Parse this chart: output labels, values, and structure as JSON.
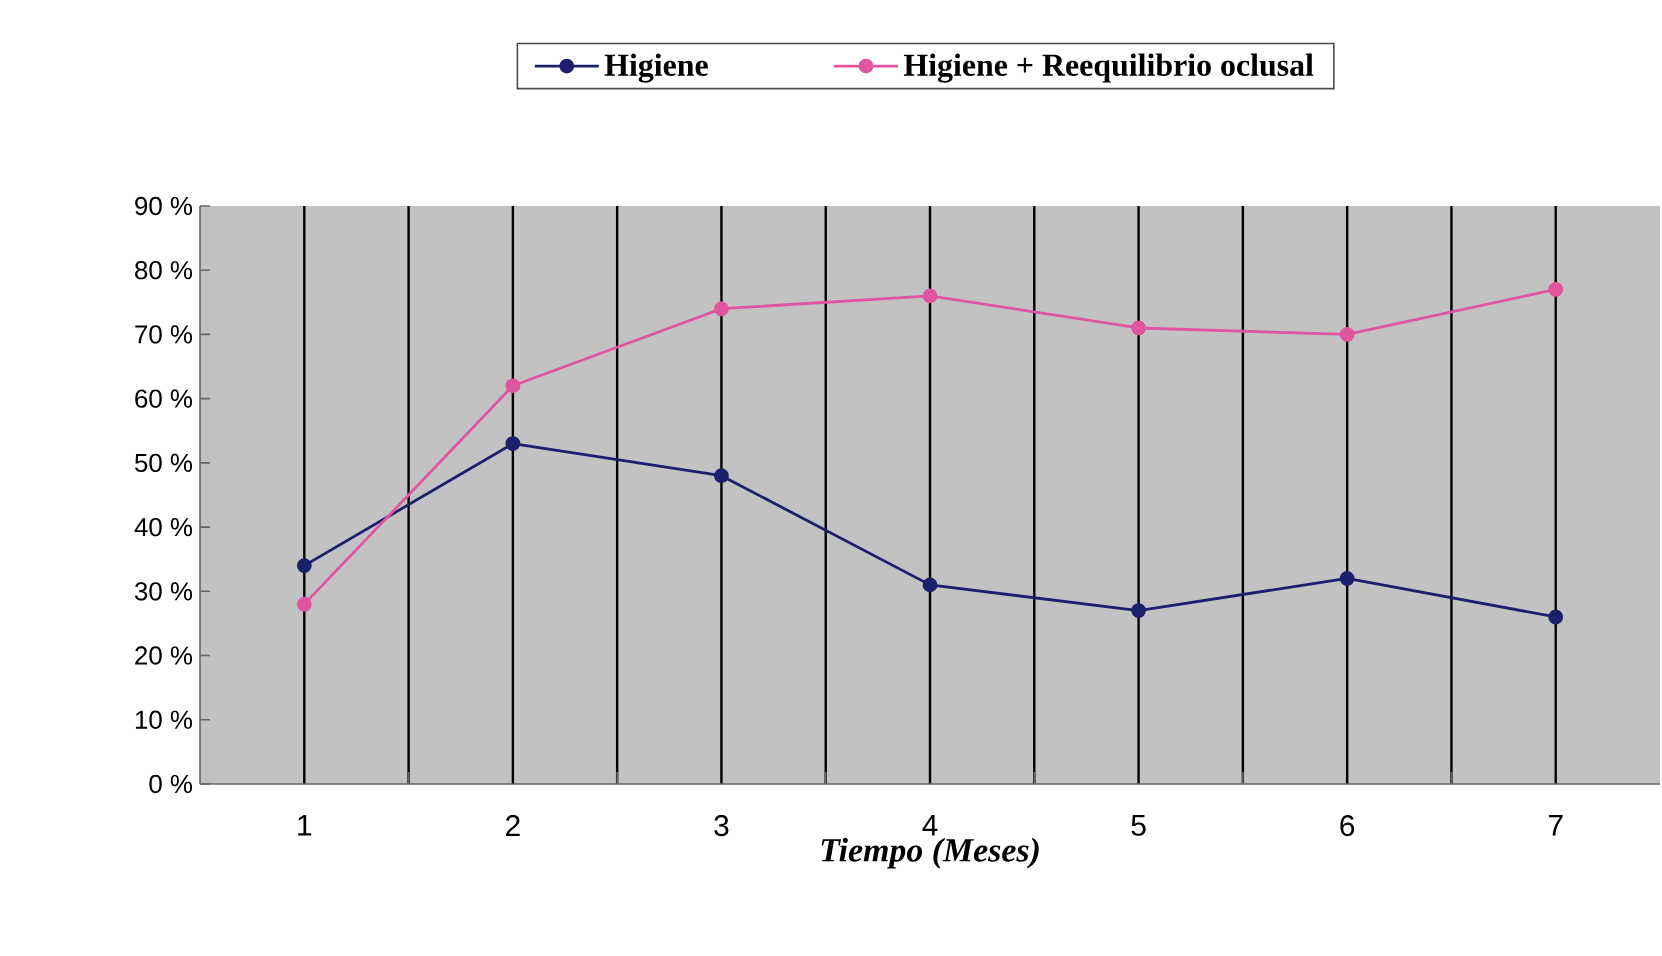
{
  "chart_data": {
    "type": "line",
    "xlabel": "Tiempo (Meses)",
    "categories": [
      "1",
      "2",
      "3",
      "4",
      "5",
      "6",
      "7"
    ],
    "ylim": [
      0,
      90
    ],
    "yticks": [
      {
        "value": 0,
        "label": "0 %"
      },
      {
        "value": 10,
        "label": "10 %"
      },
      {
        "value": 20,
        "label": "20 %"
      },
      {
        "value": 30,
        "label": "30 %"
      },
      {
        "value": 40,
        "label": "40 %"
      },
      {
        "value": 50,
        "label": "50 %"
      },
      {
        "value": 60,
        "label": "60 %"
      },
      {
        "value": 70,
        "label": "70 %"
      },
      {
        "value": 80,
        "label": "80 %"
      },
      {
        "value": 90,
        "label": "90 %"
      }
    ],
    "series": [
      {
        "name": "Higiene",
        "color": "#1c1f6b",
        "values": [
          34,
          53,
          48,
          31,
          27,
          32,
          26
        ]
      },
      {
        "name": "Higiene + Reequilibrio oclusal",
        "color": "#e0559f",
        "values": [
          28,
          62,
          74,
          76,
          71,
          70,
          77
        ]
      }
    ],
    "grid": "x",
    "legend": "top",
    "marker": "circle",
    "line_style": "solid"
  }
}
